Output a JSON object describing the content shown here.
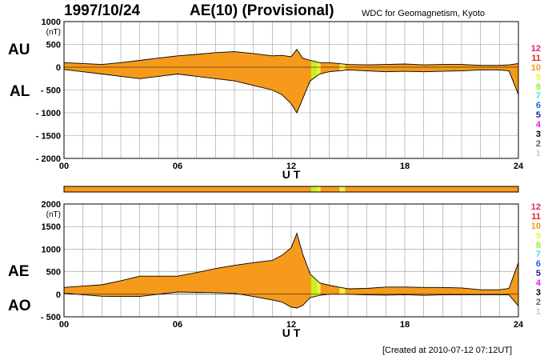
{
  "header": {
    "date": "1997/10/24",
    "title": "AE(10) (Provisional)",
    "source": "WDC for Geomagnetism, Kyoto"
  },
  "footer": {
    "created": "[Created at 2010-07-12 07:12UT]"
  },
  "labels": {
    "au": "AU",
    "al": "AL",
    "ae": "AE",
    "ao": "AO"
  },
  "legend": {
    "items": [
      {
        "label": "12",
        "color": "#e0207a"
      },
      {
        "label": "11",
        "color": "#e02020"
      },
      {
        "label": "10",
        "color": "#f59a1b"
      },
      {
        "label": "9",
        "color": "#f0f040"
      },
      {
        "label": "8",
        "color": "#90f030"
      },
      {
        "label": "7",
        "color": "#40e0f0"
      },
      {
        "label": "6",
        "color": "#2060f0"
      },
      {
        "label": "5",
        "color": "#2020a0"
      },
      {
        "label": "4",
        "color": "#e020e0"
      },
      {
        "label": "3",
        "color": "#000000"
      },
      {
        "label": "2",
        "color": "#606060"
      },
      {
        "label": "1",
        "color": "#c8c8c8"
      }
    ]
  },
  "chart_data": [
    {
      "type": "area",
      "name": "AU-AL",
      "yunit": "(nT)",
      "xlabel": "U T",
      "xlim": [
        0,
        24
      ],
      "ylim": [
        -2000,
        1000
      ],
      "yticks": [
        1000,
        500,
        0,
        -500,
        -1000,
        -1500,
        -2000
      ],
      "yticklabels": [
        "1000",
        "500",
        "0",
        "- 500",
        "- 1000",
        "- 1500",
        "- 2000"
      ],
      "xticks": [
        0,
        6,
        12,
        18,
        24
      ],
      "xticklabels": [
        "00",
        "06",
        "12",
        "18",
        "24"
      ],
      "grid": true,
      "fill_color": "#f59a1b",
      "x": [
        0,
        1,
        2,
        3,
        4,
        5,
        6,
        7,
        8,
        9,
        10,
        11,
        11.5,
        12,
        12.3,
        12.6,
        13,
        13.5,
        14,
        14.5,
        15,
        16,
        17,
        18,
        19,
        20,
        21,
        22,
        23,
        23.5,
        24
      ],
      "upper": [
        100,
        80,
        60,
        100,
        150,
        200,
        250,
        280,
        320,
        340,
        300,
        250,
        260,
        230,
        390,
        200,
        150,
        100,
        100,
        80,
        60,
        50,
        60,
        70,
        50,
        60,
        60,
        40,
        40,
        50,
        80
      ],
      "lower": [
        -50,
        -100,
        -150,
        -200,
        -250,
        -200,
        -150,
        -200,
        -250,
        -300,
        -400,
        -500,
        -600,
        -800,
        -1000,
        -700,
        -300,
        -150,
        -100,
        -80,
        -60,
        -80,
        -100,
        -90,
        -100,
        -90,
        -80,
        -60,
        -60,
        -80,
        -600
      ],
      "highlights": [
        {
          "from": 13.05,
          "to": 13.35,
          "color": "#c8f020"
        },
        {
          "from": 13.35,
          "to": 13.55,
          "color": "#f0f040"
        },
        {
          "from": 14.55,
          "to": 14.85,
          "color": "#f0f040"
        }
      ]
    },
    {
      "type": "area",
      "name": "AE-AO",
      "yunit": "(nT)",
      "xlabel": "U T",
      "xlim": [
        0,
        24
      ],
      "ylim": [
        -500,
        2000
      ],
      "yticks": [
        2000,
        1500,
        1000,
        500,
        0,
        -500
      ],
      "yticklabels": [
        "2000",
        "1500",
        "1000",
        "500",
        "0",
        "- 500"
      ],
      "xticks": [
        0,
        6,
        12,
        18,
        24
      ],
      "xticklabels": [
        "00",
        "06",
        "12",
        "18",
        "24"
      ],
      "grid": true,
      "fill_color": "#f59a1b",
      "x": [
        0,
        1,
        2,
        3,
        4,
        5,
        6,
        7,
        8,
        9,
        10,
        11,
        11.5,
        12,
        12.3,
        12.6,
        13,
        13.5,
        14,
        14.5,
        15,
        16,
        17,
        18,
        19,
        20,
        21,
        22,
        23,
        23.5,
        24
      ],
      "upper": [
        150,
        180,
        210,
        300,
        400,
        400,
        400,
        480,
        570,
        640,
        700,
        750,
        860,
        1030,
        1350,
        900,
        450,
        250,
        200,
        160,
        120,
        130,
        160,
        160,
        150,
        150,
        140,
        100,
        100,
        130,
        700
      ],
      "lower": [
        25,
        -10,
        -45,
        -50,
        -50,
        0,
        50,
        40,
        35,
        20,
        -50,
        -125,
        -170,
        -285,
        -305,
        -250,
        -75,
        -25,
        0,
        0,
        0,
        -15,
        -20,
        -10,
        -25,
        -15,
        -10,
        -10,
        -10,
        -15,
        -260
      ],
      "highlights": [
        {
          "from": 13.05,
          "to": 13.35,
          "color": "#c8f020"
        },
        {
          "from": 13.35,
          "to": 13.55,
          "color": "#f0f040"
        },
        {
          "from": 14.55,
          "to": 14.85,
          "color": "#f0f040"
        }
      ]
    }
  ]
}
